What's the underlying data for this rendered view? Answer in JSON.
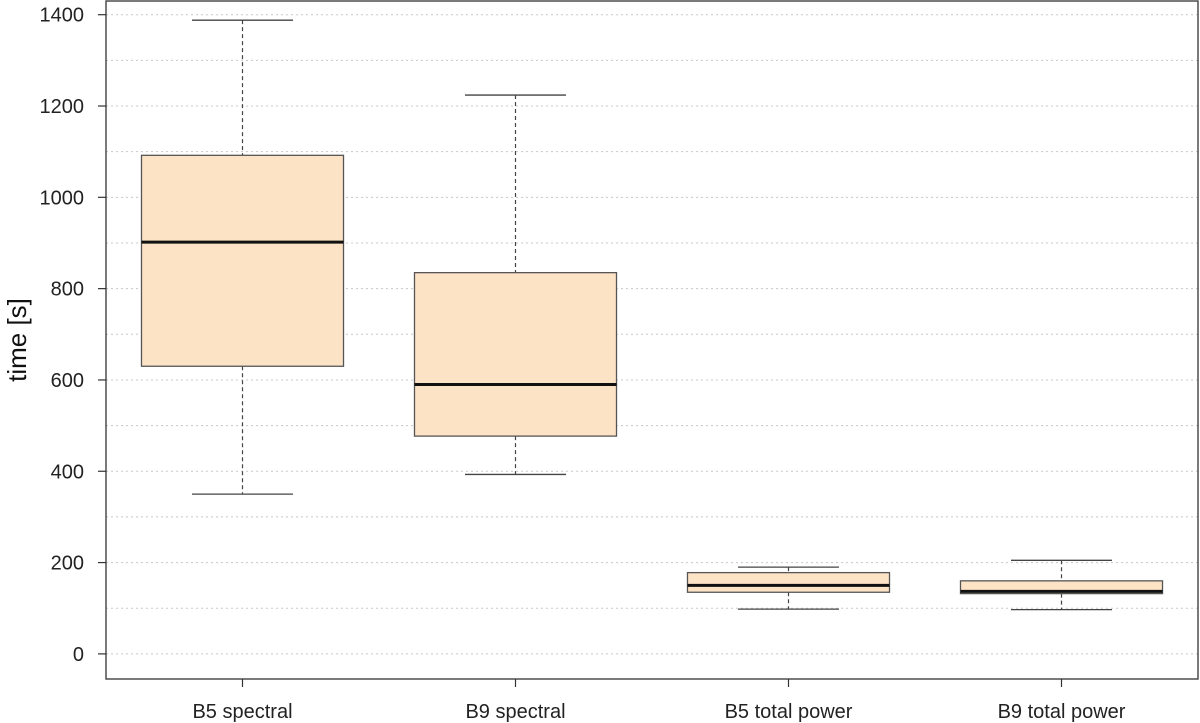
{
  "chart_data": {
    "type": "boxplot",
    "title": "",
    "xlabel": "",
    "ylabel": "time [s]",
    "ylim": [
      -55,
      1430
    ],
    "yticks": [
      0,
      200,
      400,
      600,
      800,
      1000,
      1200,
      1400
    ],
    "grid": true,
    "box_color": "#fde3c6",
    "categories": [
      "B5 spectral",
      "B9 spectral",
      "B5 total power",
      "B9 total power"
    ],
    "series": [
      {
        "category": "B5 spectral",
        "min": 350,
        "q1": 630,
        "median": 902,
        "q3": 1092,
        "max": 1388
      },
      {
        "category": "B9 spectral",
        "min": 393,
        "q1": 477,
        "median": 590,
        "q3": 835,
        "max": 1224
      },
      {
        "category": "B5 total power",
        "min": 98,
        "q1": 135,
        "median": 150,
        "q3": 178,
        "max": 190
      },
      {
        "category": "B9 total power",
        "min": 97,
        "q1": 132,
        "median": 137,
        "q3": 160,
        "max": 205
      }
    ]
  }
}
